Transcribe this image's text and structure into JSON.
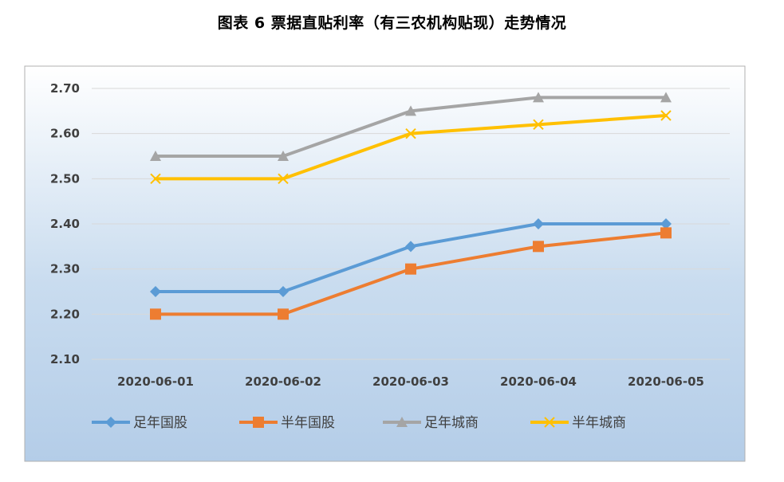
{
  "chart_data": {
    "type": "line",
    "title": "图表 6  票据直贴利率（有三农机构贴现）走势情况",
    "xlabel": "",
    "ylabel": "",
    "categories": [
      "2020-06-01",
      "2020-06-02",
      "2020-06-03",
      "2020-06-04",
      "2020-06-05"
    ],
    "y_ticks": [
      "2.10",
      "2.20",
      "2.30",
      "2.40",
      "2.50",
      "2.60",
      "2.70"
    ],
    "ylim": [
      2.1,
      2.7
    ],
    "grid": true,
    "legend_position": "bottom",
    "series": [
      {
        "name": "足年国股",
        "values": [
          2.25,
          2.25,
          2.35,
          2.4,
          2.4
        ],
        "color": "#5B9BD5",
        "marker": "diamond"
      },
      {
        "name": "半年国股",
        "values": [
          2.2,
          2.2,
          2.3,
          2.35,
          2.38
        ],
        "color": "#ED7D31",
        "marker": "square"
      },
      {
        "name": "足年城商",
        "values": [
          2.55,
          2.55,
          2.65,
          2.68,
          2.68
        ],
        "color": "#A5A5A5",
        "marker": "triangle"
      },
      {
        "name": "半年城商",
        "values": [
          2.5,
          2.5,
          2.6,
          2.62,
          2.64
        ],
        "color": "#FFC000",
        "marker": "x"
      }
    ]
  }
}
